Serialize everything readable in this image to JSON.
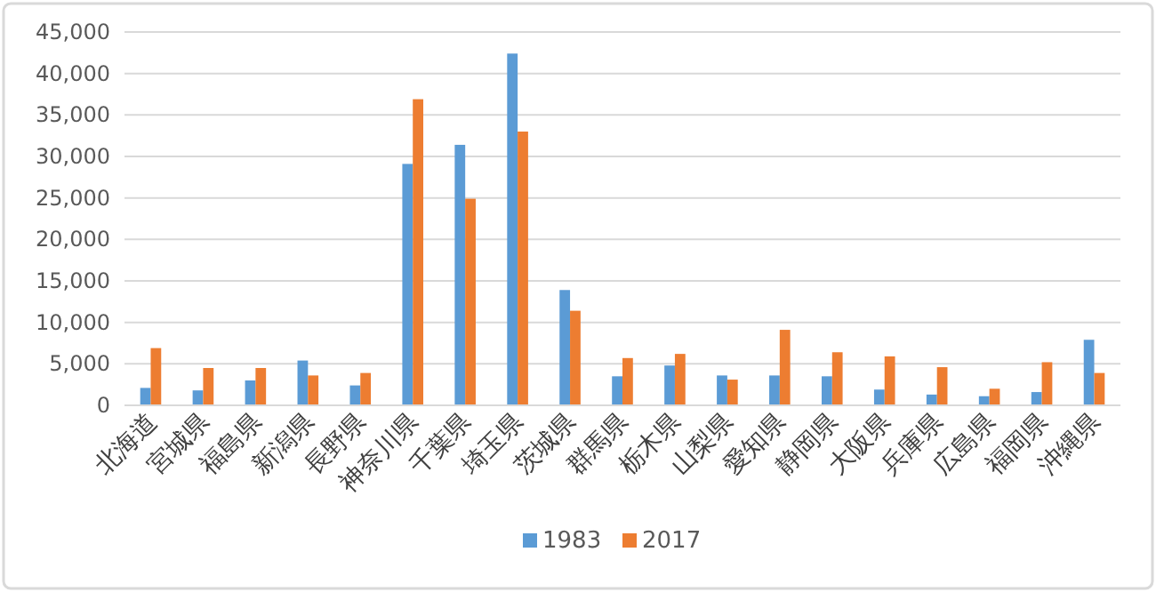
{
  "chart_data": {
    "type": "bar",
    "categories": [
      "北海道",
      "宮城県",
      "福島県",
      "新潟県",
      "長野県",
      "神奈川県",
      "千葉県",
      "埼玉県",
      "茨城県",
      "群馬県",
      "栃木県",
      "山梨県",
      "愛知県",
      "静岡県",
      "大阪県",
      "兵庫県",
      "広島県",
      "福岡県",
      "沖縄県"
    ],
    "series": [
      {
        "name": "1983",
        "color": "#5b9bd5",
        "values": [
          2100,
          1800,
          3000,
          5400,
          2400,
          29100,
          31400,
          42400,
          13900,
          3500,
          4800,
          3600,
          3600,
          3500,
          1900,
          1300,
          1100,
          1600,
          7900
        ]
      },
      {
        "name": "2017",
        "color": "#ed7d31",
        "values": [
          6900,
          4500,
          4500,
          3600,
          3900,
          36900,
          24900,
          33000,
          11400,
          5700,
          6200,
          3100,
          9100,
          6400,
          5900,
          4600,
          2000,
          5200,
          3900
        ]
      }
    ],
    "ylim": [
      0,
      45000
    ],
    "yticks": [
      {
        "value": 0,
        "label": "0"
      },
      {
        "value": 5000,
        "label": "5,000"
      },
      {
        "value": 10000,
        "label": "10,000"
      },
      {
        "value": 15000,
        "label": "15,000"
      },
      {
        "value": 20000,
        "label": "20,000"
      },
      {
        "value": 25000,
        "label": "25,000"
      },
      {
        "value": 30000,
        "label": "30,000"
      },
      {
        "value": 35000,
        "label": "35,000"
      },
      {
        "value": 40000,
        "label": "40,000"
      },
      {
        "value": 45000,
        "label": "45,000"
      }
    ],
    "grid": "y",
    "legend": "bottom"
  }
}
